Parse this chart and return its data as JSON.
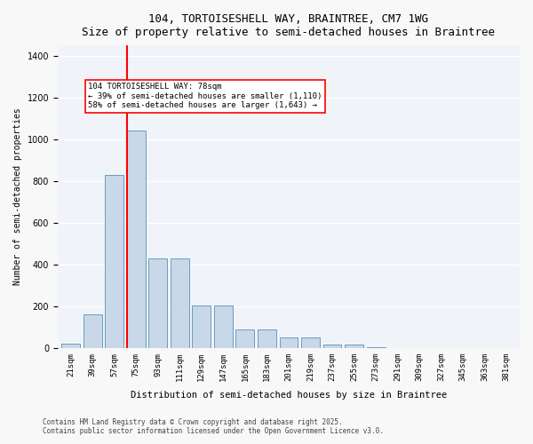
{
  "title1": "104, TORTOISESHELL WAY, BRAINTREE, CM7 1WG",
  "title2": "Size of property relative to semi-detached houses in Braintree",
  "xlabel": "Distribution of semi-detached houses by size in Braintree",
  "ylabel": "Number of semi-detached properties",
  "bar_color": "#c8d8e8",
  "bar_edge_color": "#6a9cc0",
  "background_color": "#f0f4f8",
  "grid_color": "#ffffff",
  "categories": [
    "21sqm",
    "39sqm",
    "57sqm",
    "75sqm",
    "93sqm",
    "111sqm",
    "129sqm",
    "147sqm",
    "165sqm",
    "183sqm",
    "201sqm",
    "219sqm",
    "237sqm",
    "255sqm",
    "273sqm",
    "291sqm",
    "309sqm",
    "327sqm",
    "345sqm",
    "363sqm",
    "381sqm"
  ],
  "values": [
    20,
    160,
    830,
    1040,
    430,
    430,
    205,
    205,
    90,
    90,
    50,
    50,
    15,
    15,
    5,
    0,
    0,
    0,
    0,
    0,
    0
  ],
  "property_size_sqm": 78,
  "property_bin_index": 3,
  "red_line_x": 3.0,
  "annotation_text1": "104 TORTOISESHELL WAY: 78sqm",
  "annotation_text2": "← 39% of semi-detached houses are smaller (1,110)",
  "annotation_text3": "58% of semi-detached houses are larger (1,643) →",
  "ylim": [
    0,
    1450
  ],
  "footnote1": "Contains HM Land Registry data © Crown copyright and database right 2025.",
  "footnote2": "Contains public sector information licensed under the Open Government Licence v3.0."
}
